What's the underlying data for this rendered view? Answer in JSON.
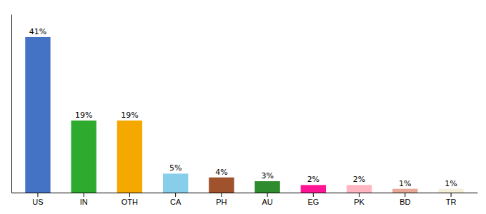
{
  "chart_data": {
    "type": "bar",
    "categories": [
      "US",
      "IN",
      "OTH",
      "CA",
      "PH",
      "AU",
      "EG",
      "PK",
      "BD",
      "TR"
    ],
    "values": [
      41,
      19,
      19,
      5,
      4,
      3,
      2,
      2,
      1,
      1
    ],
    "value_labels": [
      "41%",
      "19%",
      "19%",
      "5%",
      "4%",
      "3%",
      "2%",
      "2%",
      "1%",
      "1%"
    ],
    "colors": [
      "#4472C4",
      "#2EAA2E",
      "#F5A800",
      "#87CEEB",
      "#A0522D",
      "#2E8B2E",
      "#FF1493",
      "#FFB6C1",
      "#E8A898",
      "#F5F0DC"
    ],
    "ylim": [
      0,
      47
    ],
    "data_labels": true,
    "tick_labels": "x",
    "grid": false
  }
}
